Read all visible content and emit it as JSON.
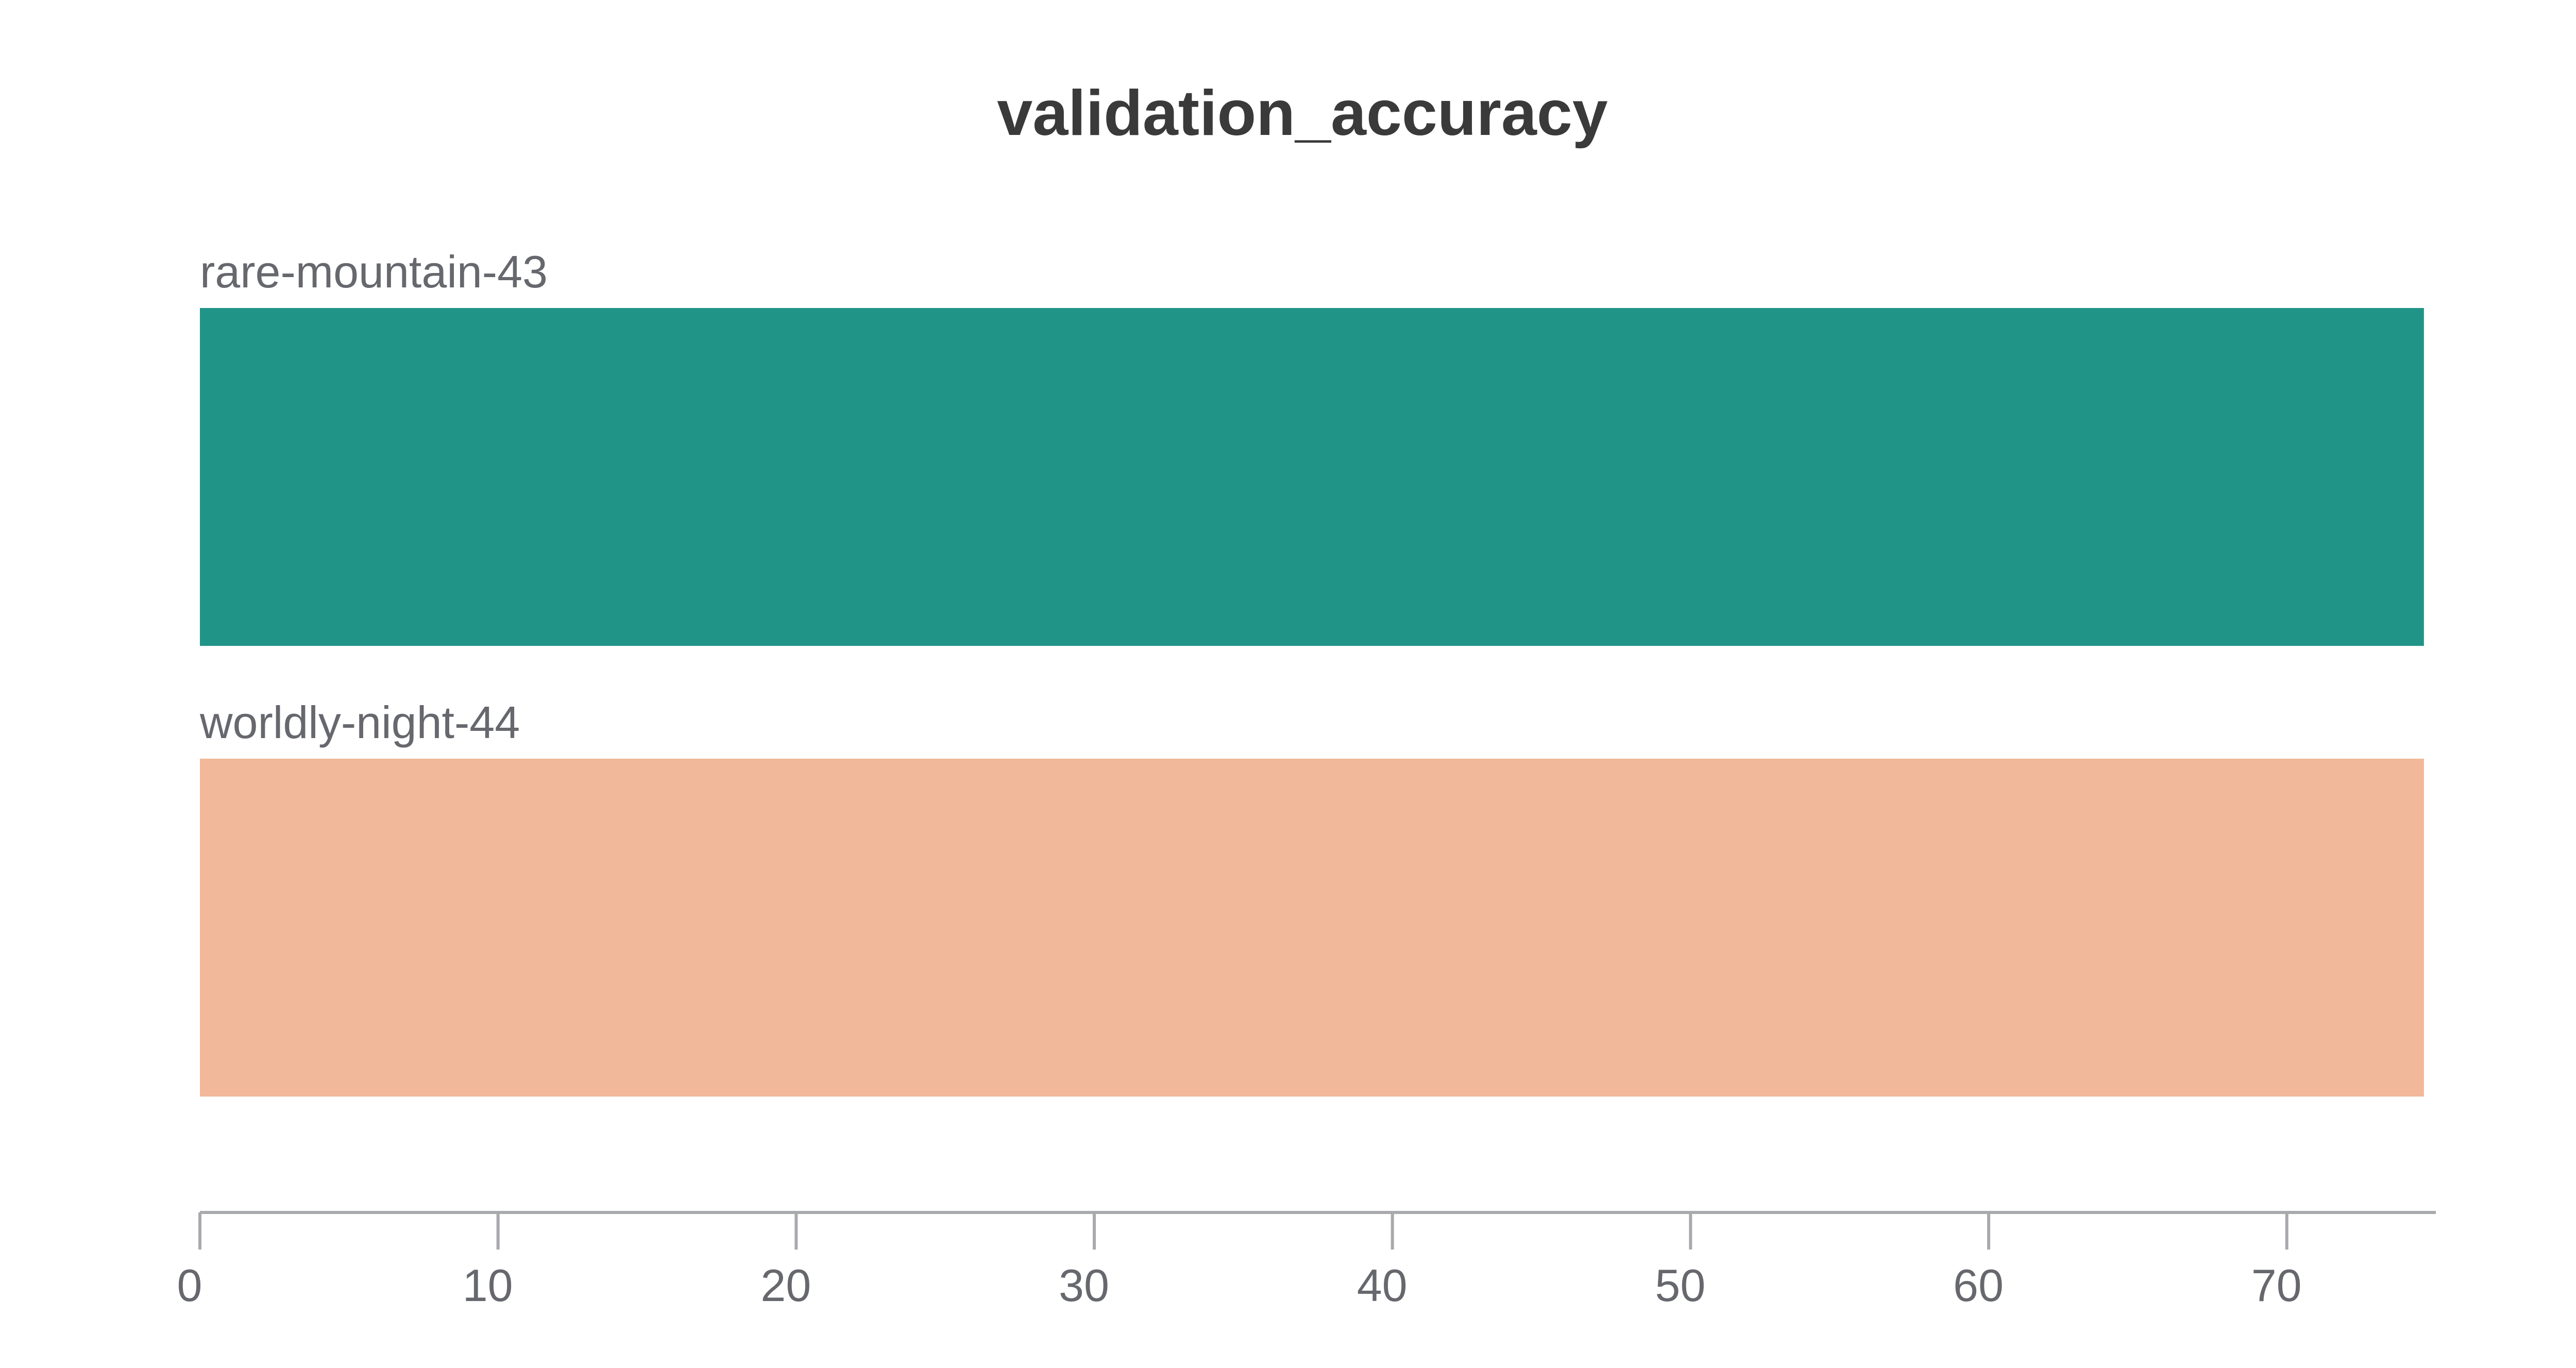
{
  "chart_data": {
    "type": "bar",
    "orientation": "horizontal",
    "title": "validation_accuracy",
    "xlabel": "",
    "ylabel": "",
    "categories": [
      "rare-mountain-43",
      "worldly-night-44"
    ],
    "values": [
      74.6,
      74.6
    ],
    "colors": [
      "#219488",
      "#f1b899"
    ],
    "xlim": [
      0,
      75
    ],
    "x_ticks": [
      0,
      10,
      20,
      30,
      40,
      50,
      60,
      70
    ],
    "grid": false,
    "legend": "none",
    "label_placement": "above-bar"
  }
}
